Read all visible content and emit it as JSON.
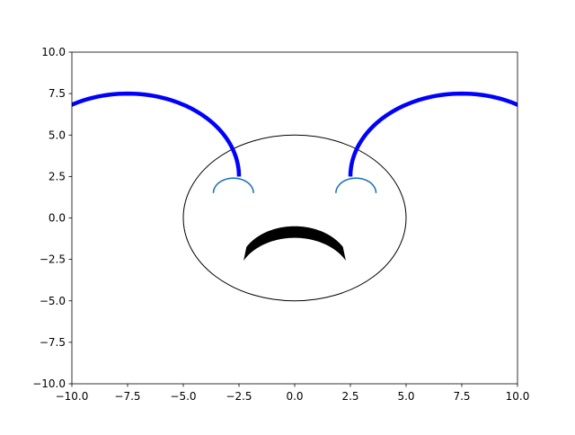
{
  "chart_data": {
    "type": "line",
    "title": "",
    "xlabel": "",
    "ylabel": "",
    "xlim": [
      -10,
      10
    ],
    "ylim": [
      -10,
      10
    ],
    "grid": false,
    "x_ticks": [
      -10.0,
      -7.5,
      -5.0,
      -2.5,
      0.0,
      2.5,
      5.0,
      7.5,
      10.0
    ],
    "y_ticks": [
      -10.0,
      -7.5,
      -5.0,
      -2.5,
      0.0,
      2.5,
      5.0,
      7.5,
      10.0
    ],
    "x_tick_labels": [
      "−10.0",
      "−7.5",
      "−5.0",
      "−2.5",
      "0.0",
      "2.5",
      "5.0",
      "7.5",
      "10.0"
    ],
    "y_tick_labels": [
      "−10.0",
      "−7.5",
      "−5.0",
      "−2.5",
      "0.0",
      "2.5",
      "5.0",
      "7.5",
      "10.0"
    ],
    "shapes": [
      {
        "kind": "ellipse",
        "center": [
          0,
          0
        ],
        "width": 10,
        "height": 10,
        "stroke_color": "#000000",
        "fill": "none"
      },
      {
        "kind": "arc",
        "center": [
          -7.5,
          2.5
        ],
        "radius": 5,
        "theta": [
          0,
          180
        ],
        "color": "#0000ff",
        "line": "thick"
      },
      {
        "kind": "arc",
        "center": [
          7.5,
          2.5
        ],
        "radius": 5,
        "theta": [
          0,
          180
        ],
        "color": "#0000ff",
        "line": "thick"
      },
      {
        "kind": "arc",
        "center": [
          -2.75,
          1.5
        ],
        "radius": 0.9,
        "theta": [
          0,
          180
        ],
        "color": "#1f77b4",
        "line": "normal"
      },
      {
        "kind": "arc",
        "center": [
          2.75,
          1.5
        ],
        "radius": 0.9,
        "theta": [
          0,
          180
        ],
        "color": "#1f77b4",
        "line": "normal"
      },
      {
        "kind": "crescent",
        "center": [
          0,
          -3
        ],
        "outer_radius": 2.5,
        "inner_radius": 2.6,
        "inner_center": [
          0,
          -3.8
        ],
        "color": "#000000"
      }
    ]
  }
}
